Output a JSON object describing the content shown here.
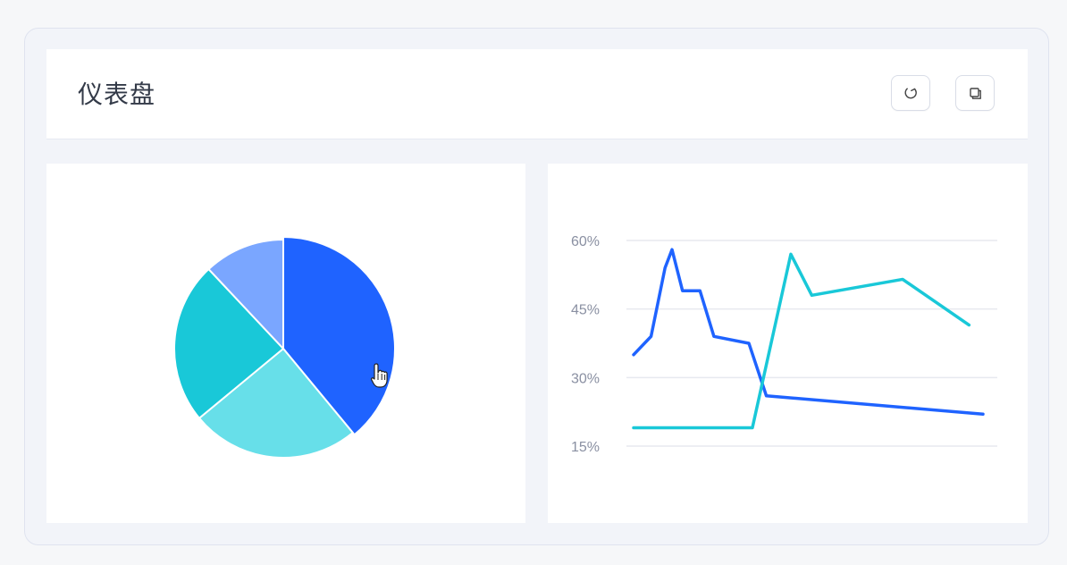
{
  "dashboard": {
    "title": "仪表盘",
    "actions": [
      {
        "name": "refresh",
        "icon": "refresh-icon"
      },
      {
        "name": "copy",
        "icon": "copy-icon"
      }
    ]
  },
  "colors": {
    "blue": "#1f63ff",
    "teal": "#19c8d8",
    "light_teal": "#67dfe9",
    "light_blue": "#7aa6ff",
    "grid": "#e7e9ef",
    "axis_text": "#8a90a2"
  },
  "chart_data": [
    {
      "type": "pie",
      "values": [
        39,
        25,
        24,
        12
      ],
      "colors": [
        "#1f63ff",
        "#67dfe9",
        "#19c8d8",
        "#7aa6ff"
      ],
      "title": "",
      "legend": false,
      "highlighted_slice": 0
    },
    {
      "type": "line",
      "title": "",
      "xlabel": "",
      "ylabel": "",
      "ylim": [
        10,
        60
      ],
      "yticks": [
        "60%",
        "45%",
        "30%",
        "15%"
      ],
      "ytick_values": [
        60,
        45,
        30,
        15
      ],
      "grid": true,
      "series": [
        {
          "color": "#1f63ff",
          "points": [
            [
              0,
              35
            ],
            [
              5,
              39
            ],
            [
              9,
              54
            ],
            [
              11,
              58
            ],
            [
              14,
              49
            ],
            [
              19,
              49
            ],
            [
              23,
              39
            ],
            [
              33,
              37.5
            ],
            [
              38,
              26
            ],
            [
              100,
              22
            ]
          ]
        },
        {
          "color": "#19c8d8",
          "points": [
            [
              0,
              19
            ],
            [
              34,
              19
            ],
            [
              45,
              57
            ],
            [
              51,
              48
            ],
            [
              77,
              51.5
            ],
            [
              96,
              41.5
            ]
          ]
        }
      ]
    }
  ]
}
